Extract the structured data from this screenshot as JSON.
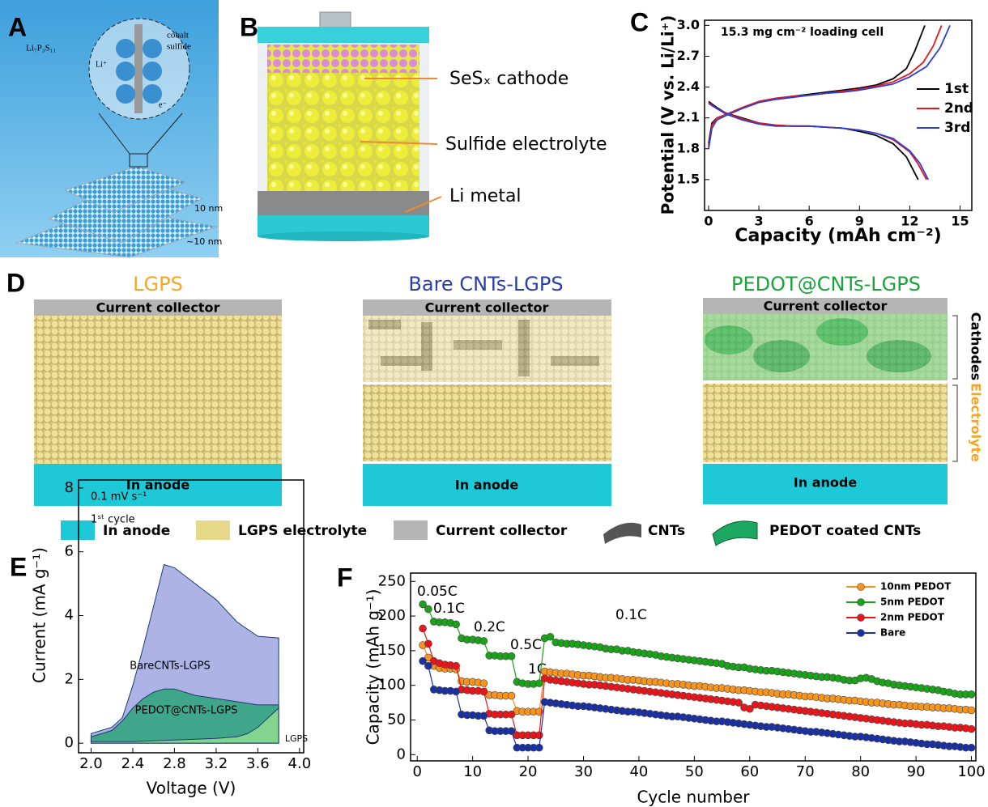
{
  "panel_labels": [
    "A",
    "B",
    "C",
    "D",
    "E",
    "F"
  ],
  "panel_a": {
    "labels": [
      "Li₇P₃S₁₁",
      "cobalt",
      "sulfide",
      "Li⁺",
      "e⁻",
      "10 nm",
      "~10 nm"
    ]
  },
  "panel_b": {
    "labels": [
      "SeSₓ cathode",
      "Sulfide electrolyte",
      "Li metal"
    ]
  },
  "panel_d": {
    "columns": [
      {
        "title": "LGPS",
        "collector": "Current collector",
        "anode": "In anode"
      },
      {
        "title": "Bare CNTs-LGPS",
        "collector": "Current collector",
        "anode": "In anode"
      },
      {
        "title": "PEDOT@CNTs-LGPS",
        "collector": "Current collector",
        "anode": "In anode"
      }
    ],
    "side_labels": [
      "Cathodes",
      "Electrolyte"
    ],
    "legend": [
      "In anode",
      "LGPS electrolyte",
      "Current collector",
      "CNTs",
      "PEDOT coated CNTs"
    ]
  },
  "chart_data": [
    {
      "type": "line",
      "title": "15.3 mg cm⁻² loading cell",
      "x_label": "Capacity (mAh cm⁻²)",
      "y_label": "Potential (V vs. Li/Li⁺)",
      "xlim": [
        -0.24,
        15.7
      ],
      "ylim": [
        1.2,
        3.05
      ],
      "xticks": [
        0,
        3,
        6,
        9,
        12,
        15
      ],
      "yticks": [
        1.5,
        1.8,
        2.1,
        2.4,
        2.7,
        {
          "value": 3,
          "label": "3.0"
        }
      ],
      "legend": "upper right",
      "series": [
        {
          "name": "1st",
          "color": "#000000",
          "x": [
            0,
            0.5,
            1,
            2,
            3,
            4,
            5,
            6,
            7,
            8,
            9,
            10,
            11,
            11.8,
            12.5,
            null,
            0,
            0.2,
            0.5,
            1,
            2,
            3,
            4,
            5,
            6,
            7,
            8,
            9,
            10,
            11,
            11.8,
            12.3,
            12.9
          ],
          "values": [
            2.26,
            2.2,
            2.15,
            2.1,
            2.05,
            2.03,
            2.02,
            2.02,
            2.01,
            2.0,
            1.97,
            1.93,
            1.85,
            1.72,
            1.5,
            null,
            1.85,
            2.05,
            2.1,
            2.13,
            2.2,
            2.26,
            2.29,
            2.31,
            2.33,
            2.35,
            2.37,
            2.39,
            2.42,
            2.48,
            2.58,
            2.75,
            3.0
          ]
        },
        {
          "name": "2nd",
          "color": "#e8161a",
          "x": [
            0,
            0.5,
            1,
            2,
            3,
            4,
            5,
            6,
            7,
            8,
            9,
            10,
            11,
            12,
            12.5,
            13.0,
            null,
            0,
            0.2,
            0.5,
            1,
            2,
            3,
            4,
            5,
            6,
            7,
            8,
            9,
            10,
            11,
            12,
            12.8,
            13.4,
            13.9
          ],
          "values": [
            2.25,
            2.19,
            2.15,
            2.09,
            2.05,
            2.03,
            2.02,
            2.02,
            2.01,
            2.0,
            1.98,
            1.95,
            1.89,
            1.77,
            1.65,
            1.5,
            null,
            1.82,
            2.03,
            2.1,
            2.13,
            2.2,
            2.26,
            2.29,
            2.31,
            2.32,
            2.34,
            2.36,
            2.38,
            2.41,
            2.45,
            2.53,
            2.64,
            2.8,
            3.0
          ]
        },
        {
          "name": "3rd",
          "color": "#2f3fd6",
          "x": [
            0,
            0.5,
            1,
            2,
            3,
            4,
            5,
            6,
            7,
            8,
            9,
            10,
            11,
            12,
            12.6,
            13.1,
            null,
            0,
            0.2,
            0.5,
            1,
            2,
            3,
            4,
            5,
            6,
            7,
            8,
            9,
            10,
            11,
            12,
            13,
            13.8,
            14.4
          ],
          "values": [
            2.24,
            2.19,
            2.14,
            2.08,
            2.04,
            2.02,
            2.02,
            2.02,
            2.01,
            2.0,
            1.98,
            1.95,
            1.9,
            1.78,
            1.66,
            1.5,
            null,
            1.8,
            2.0,
            2.08,
            2.12,
            2.19,
            2.25,
            2.28,
            2.3,
            2.32,
            2.34,
            2.35,
            2.37,
            2.4,
            2.43,
            2.5,
            2.6,
            2.78,
            3.0
          ]
        }
      ]
    },
    {
      "type": "area",
      "x_label": "Voltage (V)",
      "y_label": "Current (mA g⁻¹)",
      "xlim": [
        1.88,
        4.04
      ],
      "ylim": [
        -0.3,
        8.25
      ],
      "xticks": [
        {
          "value": 2,
          "label": "2.0"
        },
        {
          "value": 2.4,
          "label": "2.4"
        },
        {
          "value": 2.8,
          "label": "2.8"
        },
        {
          "value": 3.2,
          "label": "3.2"
        },
        {
          "value": 3.6,
          "label": "3.6"
        },
        {
          "value": 4,
          "label": "4.0"
        }
      ],
      "yticks": [
        0,
        2,
        4,
        6,
        8
      ],
      "annotations": [
        "0.1 mV s⁻¹",
        "1ˢᵗ cycle"
      ],
      "series": [
        {
          "name": "BareCNTs-LGPS",
          "color": "#9fa6e0",
          "x": [
            2.0,
            2.1,
            2.2,
            2.3,
            2.4,
            2.5,
            2.6,
            2.7,
            2.8,
            3.0,
            3.2,
            3.4,
            3.6,
            3.8
          ],
          "values": [
            0.3,
            0.4,
            0.5,
            0.8,
            1.8,
            3.0,
            4.3,
            5.6,
            5.5,
            5.0,
            4.5,
            3.8,
            3.35,
            3.3
          ]
        },
        {
          "name": "PEDOT@CNTs-LGPS",
          "color": "#2ca37a",
          "x": [
            2.0,
            2.1,
            2.2,
            2.3,
            2.4,
            2.5,
            2.6,
            2.7,
            2.8,
            3.0,
            3.2,
            3.4,
            3.6,
            3.8
          ],
          "values": [
            0.2,
            0.3,
            0.4,
            0.7,
            1.1,
            1.4,
            1.6,
            1.7,
            1.7,
            1.5,
            1.4,
            1.3,
            1.2,
            1.2
          ]
        },
        {
          "name": "LGPS",
          "color": "#8fdc8f",
          "x": [
            2.0,
            2.4,
            2.8,
            3.2,
            3.4,
            3.5,
            3.6,
            3.7,
            3.8
          ],
          "values": [
            0.05,
            0.05,
            0.1,
            0.15,
            0.2,
            0.3,
            0.5,
            0.8,
            1.1
          ]
        }
      ]
    },
    {
      "type": "line",
      "marker": "circle",
      "x_label": "Cycle number",
      "y_label": "Capacity (mAh g⁻¹)",
      "xlim": [
        -1.2,
        100.8
      ],
      "ylim": [
        -9,
        262
      ],
      "xticks": [
        0,
        10,
        20,
        30,
        40,
        50,
        60,
        70,
        80,
        90,
        100
      ],
      "yticks": [
        0,
        50,
        100,
        150,
        200,
        250
      ],
      "legend": "upper right",
      "annotations": [
        "0.05C",
        "0.1C",
        "0.2C",
        "0.5C",
        "1C",
        "0.1C"
      ],
      "x": [
        1,
        2,
        3,
        4,
        5,
        6,
        7,
        8,
        9,
        10,
        11,
        12,
        13,
        14,
        15,
        16,
        17,
        18,
        19,
        20,
        21,
        22,
        23,
        24,
        25,
        26,
        27,
        28,
        29,
        30,
        31,
        32,
        33,
        34,
        35,
        36,
        37,
        38,
        39,
        40,
        41,
        42,
        43,
        44,
        45,
        46,
        47,
        48,
        49,
        50,
        51,
        52,
        53,
        54,
        55,
        56,
        57,
        58,
        59,
        60,
        61,
        62,
        63,
        64,
        65,
        66,
        67,
        68,
        69,
        70,
        71,
        72,
        73,
        74,
        75,
        76,
        77,
        78,
        79,
        80,
        81,
        82,
        83,
        84,
        85,
        86,
        87,
        88,
        89,
        90,
        91,
        92,
        93,
        94,
        95,
        96,
        97,
        98,
        99,
        100
      ],
      "series": [
        {
          "name": "10nm PEDOT",
          "color": "#f7941d",
          "values": [
            158,
            140,
            128,
            125,
            124,
            124,
            123,
            106,
            105,
            105,
            104,
            103,
            86,
            86,
            85,
            85,
            85,
            63,
            62,
            62,
            62,
            62,
            120,
            119,
            118,
            117,
            117,
            116,
            115,
            114,
            114,
            113,
            112,
            111,
            111,
            110,
            109,
            108,
            108,
            107,
            106,
            105,
            105,
            104,
            103,
            102,
            102,
            101,
            100,
            99,
            99,
            98,
            97,
            96,
            96,
            95,
            94,
            93,
            93,
            92,
            91,
            90,
            90,
            89,
            88,
            87,
            87,
            86,
            85,
            84,
            84,
            83,
            82,
            81,
            81,
            80,
            79,
            78,
            78,
            77,
            76,
            75,
            75,
            74,
            73,
            72,
            72,
            71,
            70,
            70,
            69,
            69,
            68,
            68,
            67,
            67,
            66,
            65,
            65,
            64
          ]
        },
        {
          "name": "5nm PEDOT",
          "color": "#1aa31a",
          "values": [
            217,
            210,
            192,
            191,
            191,
            190,
            188,
            168,
            166,
            166,
            165,
            164,
            143,
            143,
            142,
            142,
            142,
            105,
            103,
            102,
            102,
            103,
            168,
            170,
            162,
            161,
            160,
            160,
            159,
            158,
            157,
            156,
            155,
            153,
            152,
            152,
            150,
            150,
            148,
            147,
            146,
            145,
            144,
            142,
            141,
            140,
            139,
            138,
            137,
            136,
            135,
            134,
            133,
            132,
            131,
            128,
            127,
            126,
            126,
            124,
            123,
            122,
            121,
            121,
            120,
            119,
            118,
            117,
            116,
            115,
            114,
            113,
            112,
            112,
            111,
            110,
            108,
            107,
            107,
            110,
            111,
            109,
            106,
            104,
            103,
            101,
            100,
            99,
            98,
            97,
            96,
            95,
            94,
            93,
            91,
            90,
            88,
            87,
            87,
            87
          ]
        },
        {
          "name": "2nm PEDOT",
          "color": "#e8161a",
          "values": [
            182,
            160,
            135,
            132,
            130,
            129,
            128,
            94,
            93,
            92,
            92,
            91,
            59,
            58,
            58,
            58,
            58,
            28,
            28,
            28,
            28,
            28,
            110,
            108,
            107,
            106,
            105,
            104,
            103,
            102,
            101,
            101,
            100,
            99,
            98,
            97,
            96,
            95,
            94,
            93,
            92,
            91,
            90,
            89,
            88,
            87,
            86,
            85,
            84,
            83,
            82,
            81,
            80,
            79,
            78,
            77,
            76,
            75,
            68,
            66,
            72,
            71,
            70,
            69,
            68,
            67,
            66,
            65,
            64,
            63,
            62,
            61,
            60,
            59,
            58,
            57,
            56,
            55,
            54,
            53,
            52,
            51,
            50,
            49,
            48,
            47,
            46,
            45,
            45,
            44,
            43,
            43,
            42,
            41,
            41,
            40,
            39,
            39,
            38,
            37
          ]
        },
        {
          "name": "Bare",
          "color": "#1a2fa0",
          "values": [
            135,
            128,
            94,
            93,
            92,
            92,
            91,
            58,
            57,
            57,
            56,
            56,
            35,
            34,
            34,
            34,
            34,
            10,
            10,
            10,
            10,
            10,
            76,
            75,
            74,
            73,
            72,
            71,
            70,
            70,
            69,
            68,
            67,
            66,
            65,
            64,
            63,
            62,
            62,
            61,
            60,
            59,
            58,
            57,
            56,
            55,
            55,
            54,
            53,
            52,
            51,
            50,
            49,
            48,
            48,
            47,
            46,
            45,
            44,
            43,
            42,
            41,
            40,
            40,
            39,
            38,
            37,
            36,
            35,
            34,
            33,
            33,
            32,
            31,
            30,
            29,
            28,
            27,
            26,
            26,
            25,
            24,
            23,
            22,
            21,
            20,
            19,
            19,
            18,
            17,
            16,
            15,
            15,
            14,
            13,
            12,
            12,
            11,
            10,
            10
          ]
        }
      ]
    }
  ]
}
